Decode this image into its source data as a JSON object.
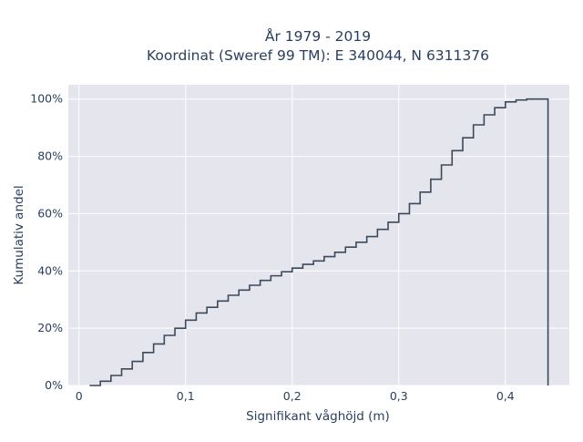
{
  "chart_data": {
    "type": "step",
    "title_lines": [
      "År 1979 - 2019",
      "Koordinat (Sweref 99 TM): E 340044, N 6311376"
    ],
    "xlabel": "Signifikant våghöjd (m)",
    "ylabel": "Kumulativ andel",
    "xlim": [
      -0.01,
      0.46
    ],
    "ylim": [
      0,
      1.05
    ],
    "x_ticks": [
      {
        "value": 0,
        "label": "0"
      },
      {
        "value": 0.1,
        "label": "0,1"
      },
      {
        "value": 0.2,
        "label": "0,2"
      },
      {
        "value": 0.3,
        "label": "0,3"
      },
      {
        "value": 0.4,
        "label": "0,4"
      }
    ],
    "y_ticks": [
      {
        "value": 0,
        "label": "0%"
      },
      {
        "value": 0.2,
        "label": "20%"
      },
      {
        "value": 0.4,
        "label": "40%"
      },
      {
        "value": 0.6,
        "label": "60%"
      },
      {
        "value": 0.8,
        "label": "80%"
      },
      {
        "value": 1.0,
        "label": "100%"
      }
    ],
    "grid": true,
    "colors": {
      "line": "#3b4a5c",
      "plot_bg": "#e5e5ee",
      "grid": "#ffffff"
    },
    "steps": [
      [
        0.01,
        0.0
      ],
      [
        0.02,
        0.015
      ],
      [
        0.03,
        0.035
      ],
      [
        0.04,
        0.058
      ],
      [
        0.05,
        0.084
      ],
      [
        0.06,
        0.115
      ],
      [
        0.07,
        0.145
      ],
      [
        0.08,
        0.175
      ],
      [
        0.09,
        0.2
      ],
      [
        0.1,
        0.228
      ],
      [
        0.11,
        0.253
      ],
      [
        0.12,
        0.273
      ],
      [
        0.13,
        0.295
      ],
      [
        0.14,
        0.315
      ],
      [
        0.15,
        0.333
      ],
      [
        0.16,
        0.35
      ],
      [
        0.17,
        0.367
      ],
      [
        0.18,
        0.383
      ],
      [
        0.19,
        0.397
      ],
      [
        0.2,
        0.41
      ],
      [
        0.21,
        0.423
      ],
      [
        0.22,
        0.435
      ],
      [
        0.23,
        0.45
      ],
      [
        0.24,
        0.465
      ],
      [
        0.25,
        0.483
      ],
      [
        0.26,
        0.5
      ],
      [
        0.27,
        0.52
      ],
      [
        0.28,
        0.545
      ],
      [
        0.29,
        0.57
      ],
      [
        0.3,
        0.6
      ],
      [
        0.31,
        0.635
      ],
      [
        0.32,
        0.675
      ],
      [
        0.33,
        0.72
      ],
      [
        0.34,
        0.77
      ],
      [
        0.35,
        0.82
      ],
      [
        0.36,
        0.865
      ],
      [
        0.37,
        0.91
      ],
      [
        0.38,
        0.945
      ],
      [
        0.39,
        0.97
      ],
      [
        0.4,
        0.99
      ],
      [
        0.41,
        0.997
      ],
      [
        0.42,
        1.0
      ],
      [
        0.44,
        1.0
      ],
      [
        0.44,
        0.0
      ]
    ]
  }
}
